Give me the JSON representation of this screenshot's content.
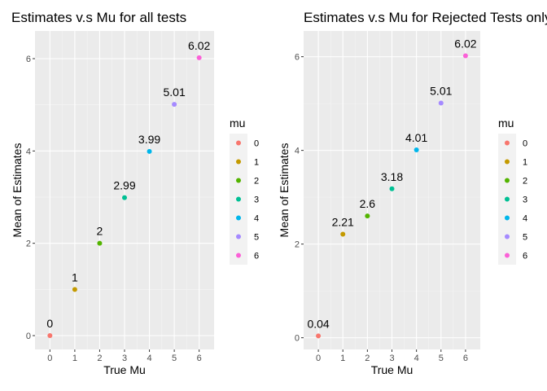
{
  "chart_data": [
    {
      "type": "scatter",
      "title": "Estimates v.s Mu for all tests",
      "xlabel": "True Mu",
      "ylabel": "Mean of Estimates",
      "xlim": [
        -0.6,
        6.6
      ],
      "ylim": [
        -0.3,
        6.6
      ],
      "x_ticks": [
        "0",
        "1",
        "2",
        "3",
        "4",
        "5",
        "6"
      ],
      "y_ticks": [
        "0",
        "2",
        "4",
        "6"
      ],
      "grid": true,
      "legend": {
        "title": "mu",
        "position": "right",
        "entries": [
          "0",
          "1",
          "2",
          "3",
          "4",
          "5",
          "6"
        ]
      },
      "points": [
        {
          "x": 0,
          "y": 0,
          "label": "0",
          "group": "0"
        },
        {
          "x": 1,
          "y": 1,
          "label": "1",
          "group": "1"
        },
        {
          "x": 2,
          "y": 2,
          "label": "2",
          "group": "2"
        },
        {
          "x": 3,
          "y": 2.99,
          "label": "2.99",
          "group": "3"
        },
        {
          "x": 4,
          "y": 3.99,
          "label": "3.99",
          "group": "4"
        },
        {
          "x": 5,
          "y": 5.01,
          "label": "5.01",
          "group": "5"
        },
        {
          "x": 6,
          "y": 6.02,
          "label": "6.02",
          "group": "6"
        }
      ]
    },
    {
      "type": "scatter",
      "title": "Estimates v.s Mu for Rejected Tests only",
      "xlabel": "True Mu",
      "ylabel": "Mean of Estimates",
      "xlim": [
        -0.6,
        6.6
      ],
      "ylim": [
        -0.25,
        6.55
      ],
      "x_ticks": [
        "0",
        "1",
        "2",
        "3",
        "4",
        "5",
        "6"
      ],
      "y_ticks": [
        "0",
        "2",
        "4",
        "6"
      ],
      "grid": true,
      "legend": {
        "title": "mu",
        "position": "right",
        "entries": [
          "0",
          "1",
          "2",
          "3",
          "4",
          "5",
          "6"
        ]
      },
      "points": [
        {
          "x": 0,
          "y": 0.04,
          "label": "0.04",
          "group": "0"
        },
        {
          "x": 1,
          "y": 2.21,
          "label": "2.21",
          "group": "1"
        },
        {
          "x": 2,
          "y": 2.6,
          "label": "2.6",
          "group": "2"
        },
        {
          "x": 3,
          "y": 3.18,
          "label": "3.18",
          "group": "3"
        },
        {
          "x": 4,
          "y": 4.01,
          "label": "4.01",
          "group": "4"
        },
        {
          "x": 5,
          "y": 5.01,
          "label": "5.01",
          "group": "5"
        },
        {
          "x": 6,
          "y": 6.02,
          "label": "6.02",
          "group": "6"
        }
      ]
    }
  ],
  "colors": {
    "panel_background": "#ebebeb",
    "grid_major": "#ffffff",
    "legend_key_background": "#f2f2f2",
    "groups": {
      "0": "#f8766d",
      "1": "#c49a00",
      "2": "#53b400",
      "3": "#00c094",
      "4": "#00b6eb",
      "5": "#a58aff",
      "6": "#fb61d7"
    }
  }
}
